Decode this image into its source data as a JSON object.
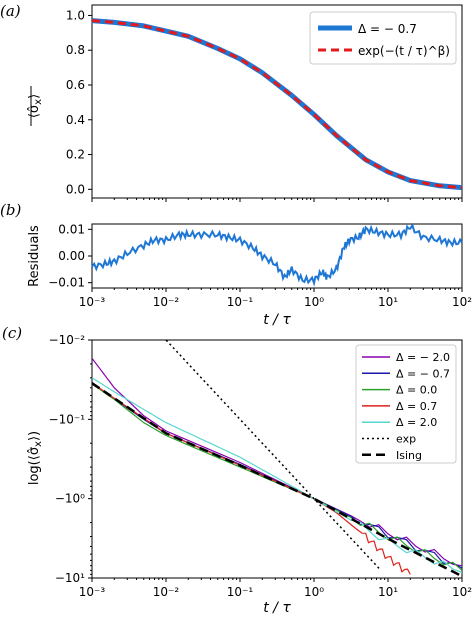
{
  "panel_labels": [
    "(a)",
    "(b)",
    "(c)"
  ],
  "colors": {
    "delta_m07_thick": "#1f77d4",
    "stretched_exp": "#e31a1c",
    "delta_m20": "#8b00b0",
    "delta_m07": "#1a1aa8",
    "delta_00": "#2ca02c",
    "delta_07": "#e0201a",
    "delta_20": "#5ad6d0",
    "exp": "#000000",
    "ising": "#000000"
  },
  "chart_data": [
    {
      "type": "line",
      "panel": "(a)",
      "xlabel": "",
      "ylabel": "⟨σ̂x⟩ (overlined)",
      "xscale": "log",
      "xlim": [
        0.001,
        100
      ],
      "ylim": [
        -0.05,
        1.06
      ],
      "yticks": [
        "0.0",
        "0.2",
        "0.4",
        "0.6",
        "0.8",
        "1.0"
      ],
      "legend_position": "top-right",
      "series": [
        {
          "name": "Δ = − 0.7",
          "style": "solid-thick",
          "x": [
            0.001,
            0.002,
            0.005,
            0.01,
            0.02,
            0.05,
            0.1,
            0.2,
            0.5,
            1,
            2,
            5,
            10,
            20,
            50,
            100
          ],
          "y": [
            0.97,
            0.96,
            0.94,
            0.91,
            0.88,
            0.81,
            0.75,
            0.67,
            0.54,
            0.43,
            0.31,
            0.17,
            0.1,
            0.05,
            0.02,
            0.01
          ]
        },
        {
          "name": "exp(−(t / τ)^β)",
          "style": "dashed",
          "x": [
            0.001,
            0.002,
            0.005,
            0.01,
            0.02,
            0.05,
            0.1,
            0.2,
            0.5,
            1,
            2,
            5,
            10,
            20,
            50,
            100
          ],
          "y": [
            0.97,
            0.96,
            0.94,
            0.91,
            0.88,
            0.81,
            0.75,
            0.67,
            0.54,
            0.43,
            0.31,
            0.17,
            0.1,
            0.05,
            0.02,
            0.01
          ]
        }
      ]
    },
    {
      "type": "line",
      "panel": "(b)",
      "xlabel": "t / τ",
      "ylabel": "Residuals",
      "xscale": "log",
      "xlim": [
        0.001,
        100
      ],
      "ylim": [
        -0.012,
        0.012
      ],
      "yticks": [
        "−0.01",
        "0.00",
        "0.01"
      ],
      "xticks": [
        "10⁻³",
        "10⁻²",
        "10⁻¹",
        "10⁰",
        "10¹",
        "10²"
      ],
      "series": [
        {
          "name": "",
          "x": [
            0.001,
            0.0015,
            0.002,
            0.003,
            0.005,
            0.007,
            0.01,
            0.015,
            0.02,
            0.03,
            0.05,
            0.07,
            0.1,
            0.15,
            0.2,
            0.3,
            0.4,
            0.5,
            0.7,
            1,
            1.3,
            1.5,
            2,
            2.5,
            3,
            4,
            5,
            7,
            10,
            15,
            20,
            30,
            50,
            70,
            100
          ],
          "y": [
            -0.004,
            -0.003,
            -0.002,
            0.001,
            0.004,
            0.006,
            0.006,
            0.008,
            0.008,
            0.008,
            0.008,
            0.007,
            0.006,
            0.003,
            0.0,
            -0.003,
            -0.008,
            -0.005,
            -0.009,
            -0.009,
            -0.006,
            -0.008,
            -0.005,
            0.003,
            0.006,
            0.007,
            0.01,
            0.009,
            0.008,
            0.008,
            0.011,
            0.007,
            0.006,
            0.005,
            0.005
          ]
        }
      ]
    },
    {
      "type": "line",
      "panel": "(c)",
      "xlabel": "t / τ",
      "ylabel": "log(⟨σ̂x⟩ overlined)",
      "xscale": "log",
      "yscale": "symlog",
      "xlim": [
        0.001,
        100
      ],
      "yticks": [
        "−10⁻²",
        "−10⁻¹",
        "−10⁰",
        "−10¹"
      ],
      "xticks": [
        "10⁻³",
        "10⁻²",
        "10⁻¹",
        "10⁰",
        "10¹",
        "10²"
      ],
      "legend_position": "top-right",
      "series": [
        {
          "name": "Δ = − 2.0",
          "x": [
            0.001,
            0.002,
            0.005,
            0.01,
            0.1,
            1,
            10,
            100
          ],
          "y": [
            -0.017,
            -0.04,
            -0.09,
            -0.14,
            -0.35,
            -1.0,
            -2.7,
            -7.0
          ]
        },
        {
          "name": "Δ = − 0.7",
          "x": [
            0.001,
            0.002,
            0.005,
            0.01,
            0.1,
            1,
            10,
            100
          ],
          "y": [
            -0.035,
            -0.055,
            -0.1,
            -0.15,
            -0.37,
            -1.0,
            -2.8,
            -7.5
          ]
        },
        {
          "name": "Δ = 0.0",
          "x": [
            0.001,
            0.002,
            0.005,
            0.01,
            0.1,
            1,
            10,
            100
          ],
          "y": [
            -0.036,
            -0.056,
            -0.11,
            -0.16,
            -0.4,
            -1.0,
            -3.0,
            -8.0
          ]
        },
        {
          "name": "Δ = 0.7",
          "x": [
            0.001,
            0.01,
            0.1,
            1,
            2,
            5,
            10,
            20
          ],
          "y": [
            -0.035,
            -0.15,
            -0.38,
            -1.0,
            -1.5,
            -3.0,
            -5.5,
            -9.0
          ]
        },
        {
          "name": "Δ = 2.0",
          "x": [
            0.001,
            0.002,
            0.005,
            0.01,
            0.1,
            1,
            10,
            100
          ],
          "y": [
            -0.03,
            -0.045,
            -0.075,
            -0.11,
            -0.3,
            -1.0,
            -3.5,
            -8.5
          ]
        },
        {
          "name": "exp",
          "x": [
            0.0043,
            0.01,
            0.1,
            1,
            5,
            8
          ],
          "y": [
            -0.0043,
            -0.01,
            -0.1,
            -1.0,
            -5.0,
            -8.0
          ]
        },
        {
          "name": "Ising",
          "x": [
            0.001,
            0.01,
            0.1,
            1,
            10,
            100
          ],
          "y": [
            -0.035,
            -0.15,
            -0.38,
            -1.0,
            -3.2,
            -9.5
          ]
        }
      ]
    }
  ]
}
